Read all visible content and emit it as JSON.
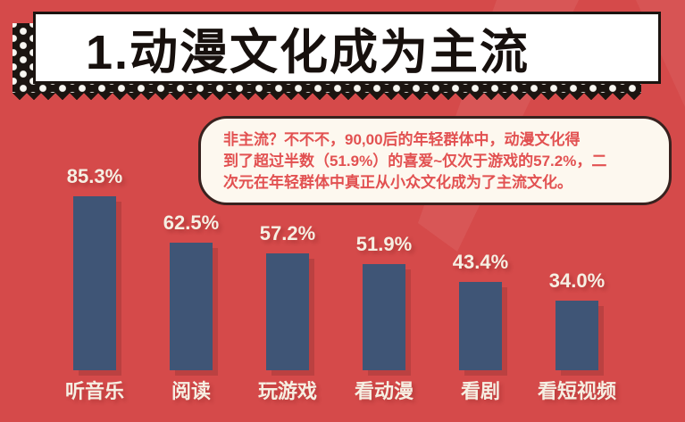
{
  "header": {
    "title": "1.动漫文化成为主流"
  },
  "callout": {
    "line1": "非主流？不不不，90,00后的年轻群体中，动漫文化得",
    "line2": "到了超过半数（51.9%）的喜爱~仅次于游戏的57.2%，二",
    "line3": "次元在年轻群体中真正从小众文化成为了主流文化。"
  },
  "chart_data": {
    "type": "bar",
    "categories": [
      "听音乐",
      "阅读",
      "玩游戏",
      "看动漫",
      "看剧",
      "看短视频"
    ],
    "values": [
      85.3,
      62.5,
      57.2,
      51.9,
      43.4,
      34.0
    ],
    "value_labels": [
      "85.3%",
      "62.5%",
      "57.2%",
      "51.9%",
      "43.4%",
      "34.0%"
    ],
    "unit": "%",
    "title": "",
    "xlabel": "",
    "ylabel": "",
    "ylim": [
      0,
      100
    ],
    "grid": false,
    "legend": false,
    "bar_color": "#3f5576"
  },
  "colors": {
    "background": "#d54a4a",
    "banner_black": "#1b1410",
    "banner_white": "#ffffff",
    "title_text": "#17100d",
    "callout_bg": "#fdf8ef",
    "callout_border": "#38221f",
    "callout_text": "#e25151",
    "bar": "#3f5576",
    "label_text": "#f6efe3",
    "bar_shadow": "#bf4040",
    "beam_highlight": "#de6060"
  }
}
